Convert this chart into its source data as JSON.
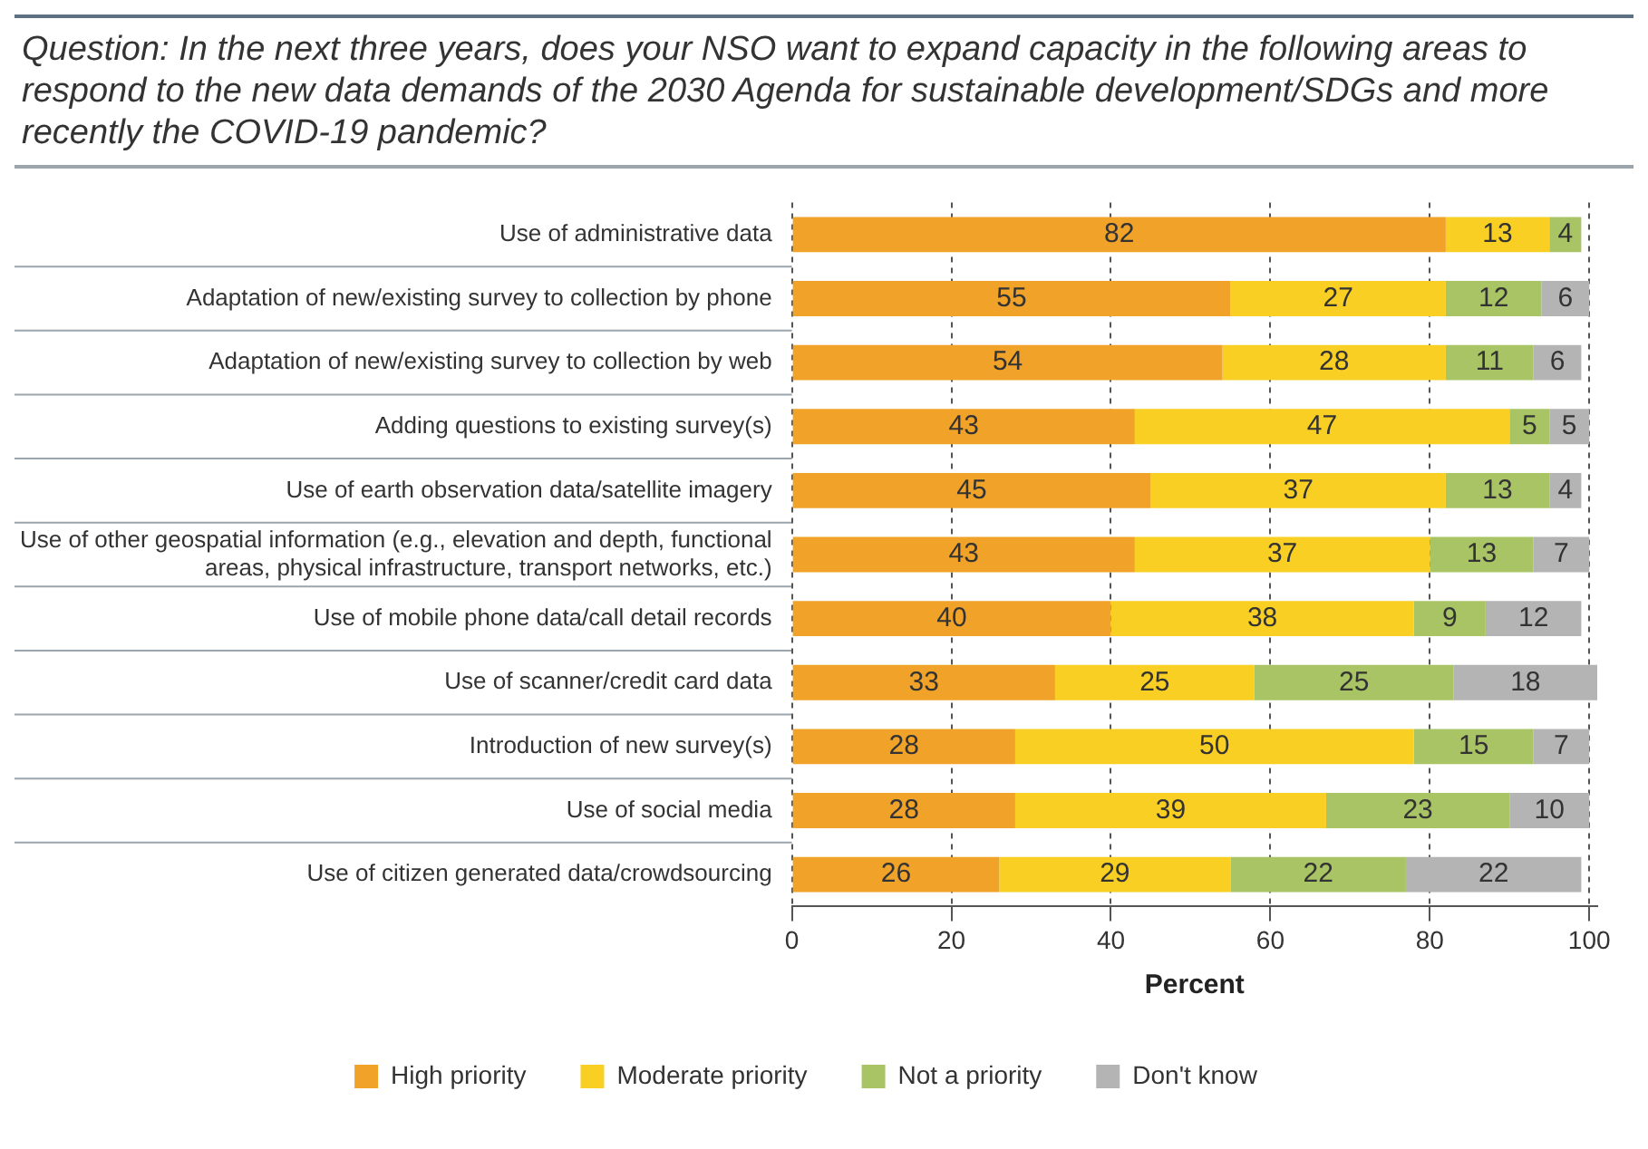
{
  "chart_data": {
    "type": "bar",
    "orientation": "horizontal",
    "stacked": true,
    "title": "Question: In the next three years, does your NSO want to expand capacity in the following areas to respond to the new data demands of the 2030 Agenda for sustainable development/SDGs and more recently the COVID-19 pandemic?",
    "xlabel": "Percent",
    "categories": [
      "Use of administrative data",
      "Adaptation of new/existing survey to collection by phone",
      "Adaptation of new/existing survey to collection by web",
      "Adding questions to existing survey(s)",
      "Use of earth observation data/satellite imagery",
      "Use of other geospatial information (e.g., elevation and depth, functional areas, physical infrastructure, transport networks, etc.)",
      "Use of mobile phone data/call detail records",
      "Use of scanner/credit card data",
      "Introduction of new survey(s)",
      "Use of social media",
      "Use of citizen generated data/crowdsourcing"
    ],
    "series": [
      {
        "name": "High priority",
        "color": "#f0a229",
        "values": [
          82,
          55,
          54,
          43,
          45,
          43,
          40,
          33,
          28,
          28,
          26
        ]
      },
      {
        "name": "Moderate priority",
        "color": "#f8cf22",
        "values": [
          13,
          27,
          28,
          47,
          37,
          37,
          38,
          25,
          50,
          39,
          29
        ]
      },
      {
        "name": "Not a priority",
        "color": "#a8c464",
        "values": [
          4,
          12,
          11,
          5,
          13,
          13,
          9,
          25,
          15,
          23,
          22
        ]
      },
      {
        "name": "Don't know",
        "color": "#b4b4b4",
        "values": [
          null,
          6,
          6,
          5,
          4,
          7,
          12,
          18,
          7,
          10,
          22
        ]
      }
    ],
    "xlim": [
      0,
      101
    ],
    "xticks": [
      0,
      20,
      40,
      60,
      80,
      100
    ],
    "grid": "x",
    "legend": "bottom",
    "data_labels": true
  }
}
